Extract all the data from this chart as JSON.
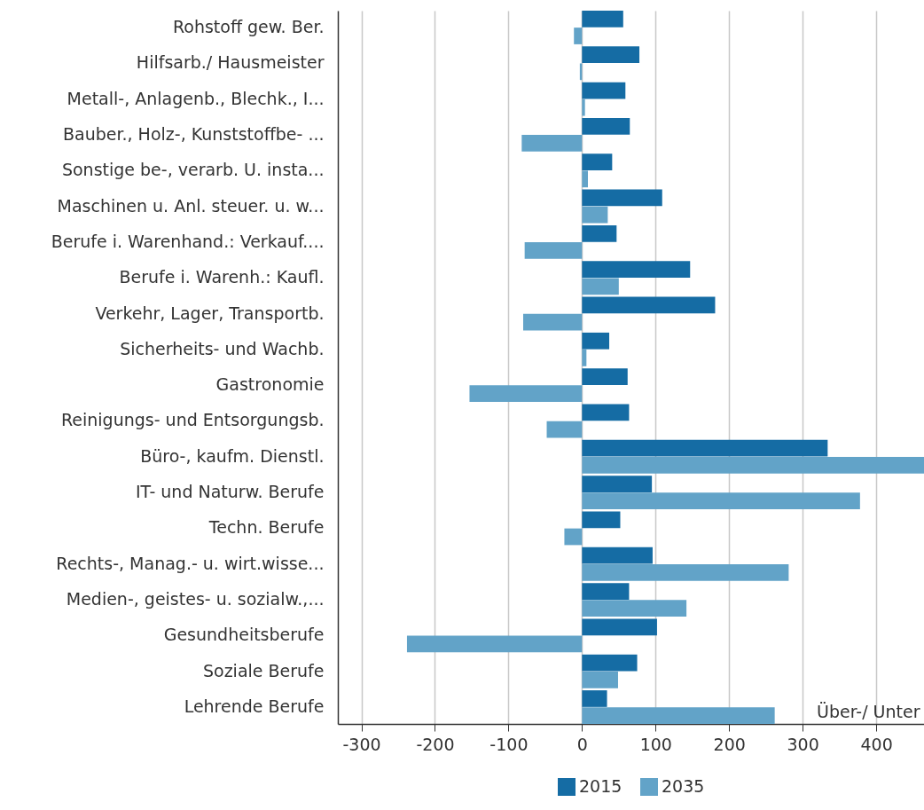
{
  "chart_data": {
    "type": "bar",
    "orientation": "horizontal",
    "xlabel": "Über-/ Unter",
    "categories": [
      "Rohstoff gew. Ber.",
      "Hilfsarb./ Hausmeister",
      "Metall-, Anlagenb., Blechk., I...",
      "Bauber., Holz-, Kunststoffbe- ...",
      "Sonstige be-, verarb. U. insta...",
      "Maschinen u. Anl. steuer. u. w...",
      "Berufe i. Warenhand.: Verkauf....",
      "Berufe i. Warenh.: Kaufl.",
      "Verkehr, Lager, Transportb.",
      "Sicherheits- und Wachb.",
      "Gastronomie",
      "Reinigungs- und Entsorgungsb.",
      "Büro-, kaufm. Dienstl.",
      "IT- und Naturw. Berufe",
      "Techn. Berufe",
      "Rechts-, Manag.- u. wirt.wisse...",
      "Medien-, geistes- u. sozialw.,...",
      "Gesundheitsberufe",
      "Soziale Berufe",
      "Lehrende Berufe"
    ],
    "series": [
      {
        "name": "2015",
        "color": "#156ca4",
        "values": [
          56,
          78,
          59,
          65,
          41,
          109,
          47,
          147,
          181,
          37,
          62,
          64,
          334,
          95,
          52,
          96,
          64,
          102,
          75,
          34
        ]
      },
      {
        "name": "2035",
        "color": "#62a3c8",
        "values": [
          -11,
          -3,
          4,
          -82,
          8,
          35,
          -78,
          50,
          -80,
          6,
          -153,
          -48,
          465,
          378,
          -24,
          281,
          142,
          -238,
          49,
          262
        ]
      }
    ],
    "xlim": [
      -332,
      465
    ],
    "xticks": [
      -300,
      -200,
      -100,
      0,
      100,
      200,
      300,
      400
    ],
    "grid": "x",
    "legend": "bottom"
  }
}
